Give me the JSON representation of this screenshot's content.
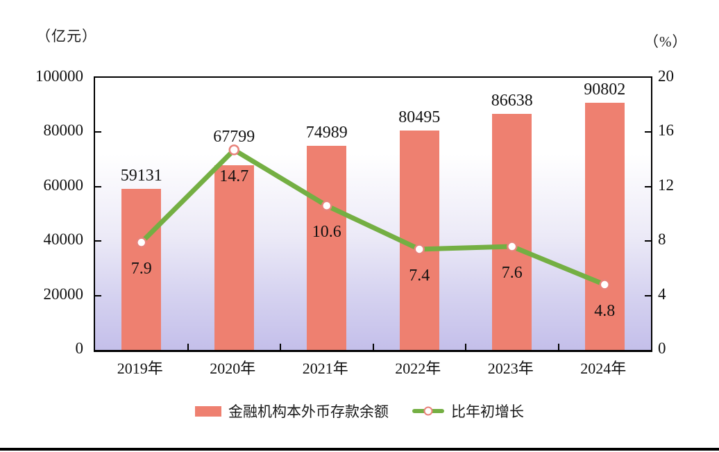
{
  "units": {
    "left": "（亿元）",
    "right": "（%）"
  },
  "chart_data": {
    "type": "bar+line combo",
    "categories": [
      "2019年",
      "2020年",
      "2021年",
      "2022年",
      "2023年",
      "2024年"
    ],
    "series": [
      {
        "name": "金融机构本外币存款余额",
        "type": "bar",
        "axis": "left",
        "unit": "亿元",
        "values": [
          59131,
          67799,
          74989,
          80495,
          86638,
          90802
        ],
        "color": "#EE8070"
      },
      {
        "name": "比年初增长",
        "type": "line",
        "axis": "right",
        "unit": "%",
        "values": [
          7.9,
          14.7,
          10.6,
          7.4,
          7.6,
          4.8
        ],
        "color": "#74AF43",
        "marker_fill": "#FFFFFF",
        "marker_stroke": "#E8827A"
      }
    ],
    "left_axis": {
      "label": "（亿元）",
      "min": 0,
      "max": 100000,
      "tick_labels": [
        "100000",
        "80000",
        "60000",
        "40000",
        "20000",
        "0"
      ]
    },
    "right_axis": {
      "label": "（%）",
      "min": 0,
      "max": 20,
      "tick_labels": [
        "20",
        "16",
        "12",
        "8",
        "4",
        "0"
      ]
    },
    "grid": false,
    "legend_position": "bottom",
    "plot_background": {
      "top": "#FFFFFF",
      "bottom": "#C4BFEA",
      "style": "vertical gradient"
    }
  }
}
